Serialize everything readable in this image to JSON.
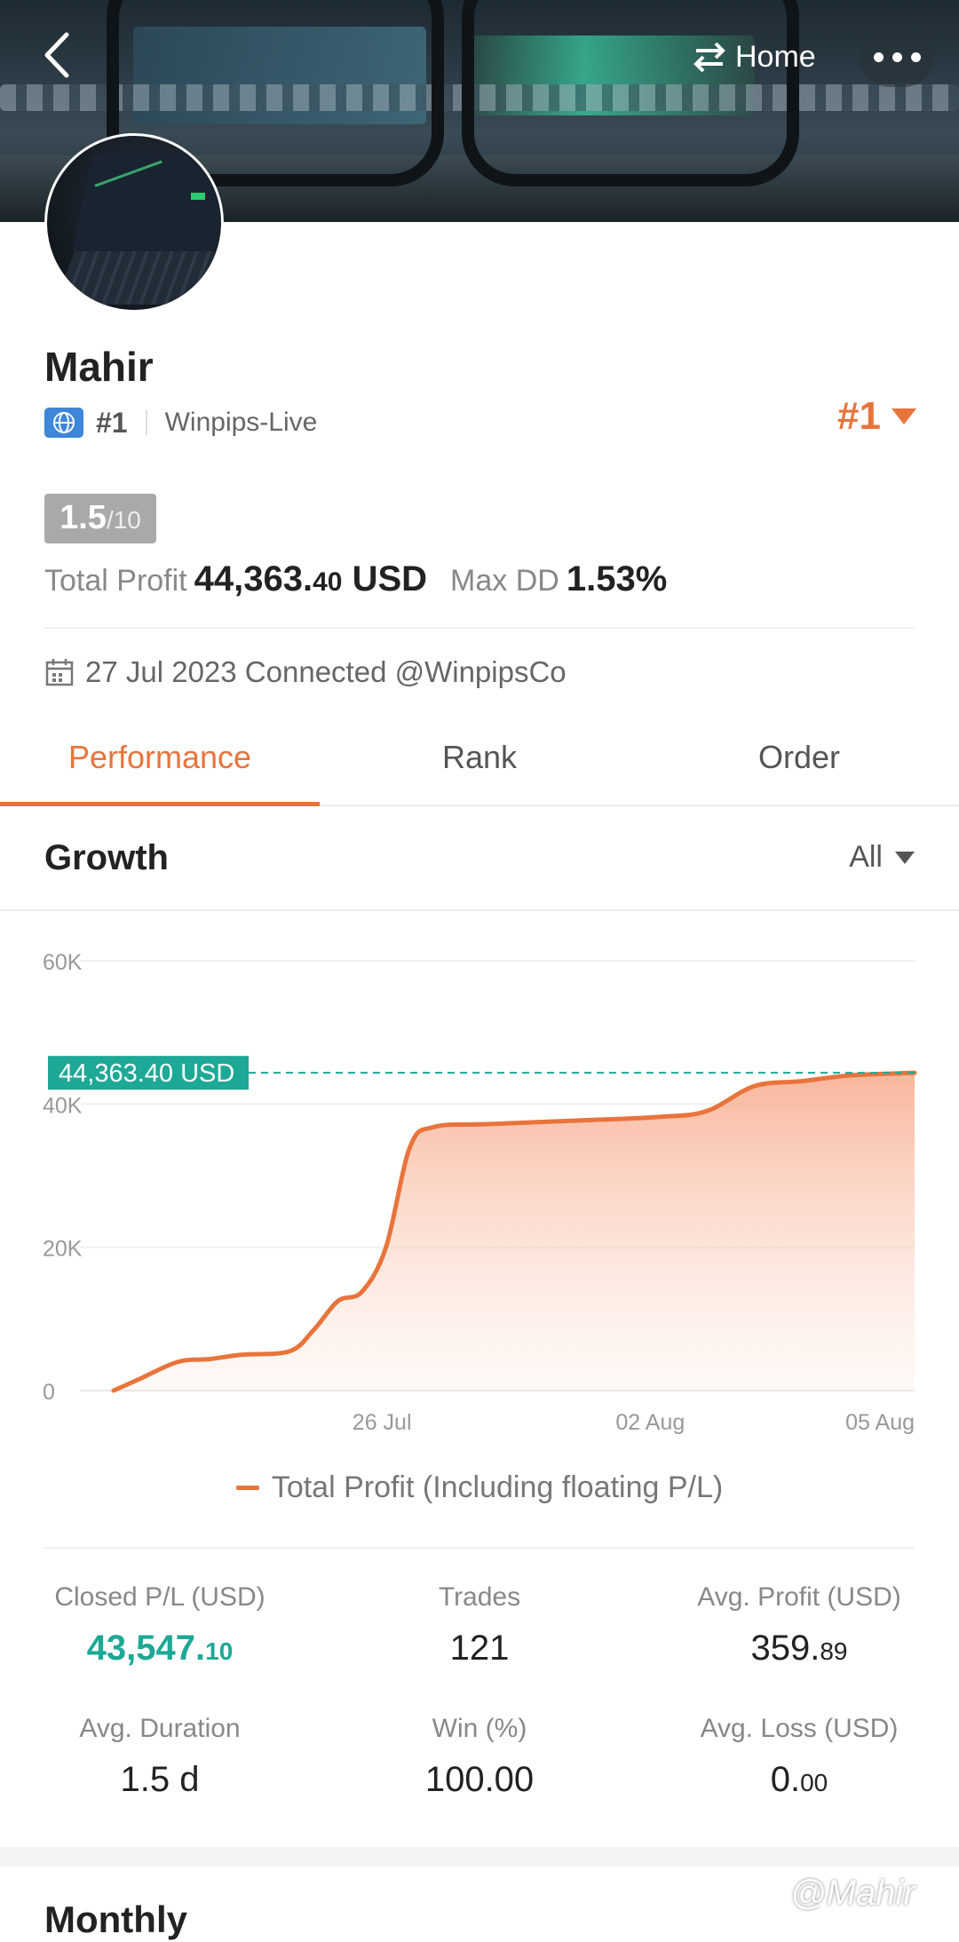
{
  "header": {
    "home_label": "Home"
  },
  "profile": {
    "name": "Mahir",
    "rank_label": "#1",
    "broker": "Winpips-Live",
    "rank_badge": "#1",
    "score_main": "1.5",
    "score_suffix": "/10",
    "total_profit_label": "Total Profit",
    "total_profit_int": "44,363.",
    "total_profit_dec": "40",
    "total_profit_unit": " USD",
    "max_dd_label": "Max DD",
    "max_dd_value": "1.53%",
    "connected_text": "27 Jul 2023 Connected @WinpipsCo"
  },
  "tabs": [
    {
      "label": "Performance",
      "active": true
    },
    {
      "label": "Rank",
      "active": false
    },
    {
      "label": "Order",
      "active": false
    }
  ],
  "growth": {
    "title": "Growth",
    "range": "All",
    "legend": "Total Profit (Including floating P/L)"
  },
  "chart_data": {
    "type": "area",
    "ylim": [
      0,
      60000
    ],
    "y_ticks": [
      "0",
      "20K",
      "40K",
      "60K"
    ],
    "x_ticks": [
      "26 Jul",
      "02 Aug",
      "05 Aug"
    ],
    "current_value_label": "44,363.40 USD",
    "current_value": 44363.4,
    "series": [
      {
        "name": "Total Profit (Including floating P/L)",
        "color": "#e8743c",
        "points": [
          [
            0,
            0
          ],
          [
            3,
            1500
          ],
          [
            8,
            4000
          ],
          [
            12,
            4400
          ],
          [
            16,
            5000
          ],
          [
            22,
            5500
          ],
          [
            25,
            8500
          ],
          [
            28,
            12500
          ],
          [
            31,
            13800
          ],
          [
            34,
            20000
          ],
          [
            37,
            34000
          ],
          [
            40,
            36800
          ],
          [
            47,
            37200
          ],
          [
            58,
            37700
          ],
          [
            68,
            38200
          ],
          [
            74,
            39000
          ],
          [
            80,
            42500
          ],
          [
            86,
            43200
          ],
          [
            92,
            44000
          ],
          [
            100,
            44363.4
          ]
        ]
      }
    ],
    "x_tick_positions": [
      33.5,
      67,
      100
    ]
  },
  "stats": [
    {
      "label": "Closed P/L (USD)",
      "int": "43,547.",
      "dec": "10",
      "green": true
    },
    {
      "label": "Trades",
      "int": "121",
      "dec": "",
      "green": false
    },
    {
      "label": "Avg. Profit (USD)",
      "int": "359.",
      "dec": "89",
      "green": false
    },
    {
      "label": "Avg. Duration",
      "int": "1.5 d",
      "dec": "",
      "green": false
    },
    {
      "label": "Win (%)",
      "int": "100.00",
      "dec": "",
      "green": false
    },
    {
      "label": "Avg. Loss (USD)",
      "int": "0.",
      "dec": "00",
      "green": false
    }
  ],
  "monthly": {
    "title": "Monthly"
  },
  "watermark": "@Mahir",
  "colors": {
    "accent": "#e8743c",
    "green": "#1ea896"
  }
}
